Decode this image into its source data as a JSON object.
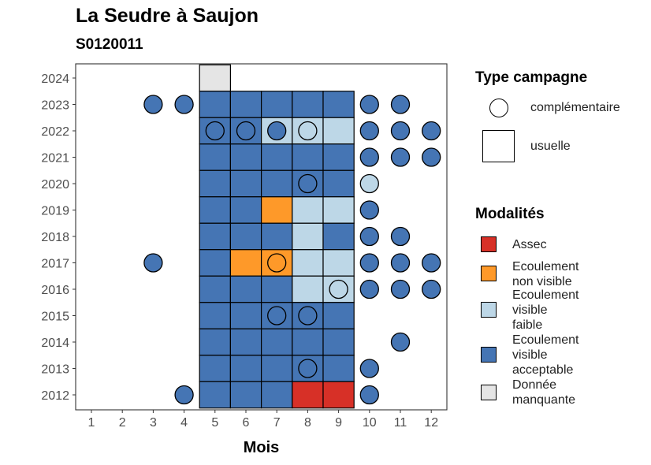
{
  "chart_data": {
    "type": "heatmap",
    "title": "La Seudre à Saujon",
    "subtitle": "S0120011",
    "xlabel": "Mois",
    "ylabel": "",
    "x_ticks": [
      "1",
      "2",
      "3",
      "4",
      "5",
      "6",
      "7",
      "8",
      "9",
      "10",
      "11",
      "12"
    ],
    "y_ticks": [
      "2012",
      "2013",
      "2014",
      "2015",
      "2016",
      "2017",
      "2018",
      "2019",
      "2020",
      "2021",
      "2022",
      "2023",
      "2024"
    ],
    "grid": false,
    "legend_position": "right",
    "colors": {
      "Assec": "#D73027",
      "Ecoulement non visible": "#FE9929",
      "Ecoulement visible faible": "#BDD7E7",
      "Ecoulement visible acceptable": "#4575B4",
      "Donnée manquante": "#E5E5E5"
    },
    "usuelle": [
      {
        "year": 2024,
        "month": 5,
        "modalite": "Donnée manquante"
      },
      {
        "year": 2023,
        "month": 5,
        "modalite": "Ecoulement visible acceptable"
      },
      {
        "year": 2023,
        "month": 6,
        "modalite": "Ecoulement visible acceptable"
      },
      {
        "year": 2023,
        "month": 7,
        "modalite": "Ecoulement visible acceptable"
      },
      {
        "year": 2023,
        "month": 8,
        "modalite": "Ecoulement visible acceptable"
      },
      {
        "year": 2023,
        "month": 9,
        "modalite": "Ecoulement visible acceptable"
      },
      {
        "year": 2022,
        "month": 5,
        "modalite": "Ecoulement visible acceptable"
      },
      {
        "year": 2022,
        "month": 6,
        "modalite": "Ecoulement visible acceptable"
      },
      {
        "year": 2022,
        "month": 7,
        "modalite": "Ecoulement visible faible"
      },
      {
        "year": 2022,
        "month": 8,
        "modalite": "Ecoulement visible faible"
      },
      {
        "year": 2022,
        "month": 9,
        "modalite": "Ecoulement visible faible"
      },
      {
        "year": 2021,
        "month": 5,
        "modalite": "Ecoulement visible acceptable"
      },
      {
        "year": 2021,
        "month": 6,
        "modalite": "Ecoulement visible acceptable"
      },
      {
        "year": 2021,
        "month": 7,
        "modalite": "Ecoulement visible acceptable"
      },
      {
        "year": 2021,
        "month": 8,
        "modalite": "Ecoulement visible acceptable"
      },
      {
        "year": 2021,
        "month": 9,
        "modalite": "Ecoulement visible acceptable"
      },
      {
        "year": 2020,
        "month": 5,
        "modalite": "Ecoulement visible acceptable"
      },
      {
        "year": 2020,
        "month": 6,
        "modalite": "Ecoulement visible acceptable"
      },
      {
        "year": 2020,
        "month": 7,
        "modalite": "Ecoulement visible acceptable"
      },
      {
        "year": 2020,
        "month": 8,
        "modalite": "Ecoulement visible acceptable"
      },
      {
        "year": 2020,
        "month": 9,
        "modalite": "Ecoulement visible acceptable"
      },
      {
        "year": 2019,
        "month": 5,
        "modalite": "Ecoulement visible acceptable"
      },
      {
        "year": 2019,
        "month": 6,
        "modalite": "Ecoulement visible acceptable"
      },
      {
        "year": 2019,
        "month": 7,
        "modalite": "Ecoulement non visible"
      },
      {
        "year": 2019,
        "month": 8,
        "modalite": "Ecoulement visible faible"
      },
      {
        "year": 2019,
        "month": 9,
        "modalite": "Ecoulement visible faible"
      },
      {
        "year": 2018,
        "month": 5,
        "modalite": "Ecoulement visible acceptable"
      },
      {
        "year": 2018,
        "month": 6,
        "modalite": "Ecoulement visible acceptable"
      },
      {
        "year": 2018,
        "month": 7,
        "modalite": "Ecoulement visible acceptable"
      },
      {
        "year": 2018,
        "month": 8,
        "modalite": "Ecoulement visible faible"
      },
      {
        "year": 2018,
        "month": 9,
        "modalite": "Ecoulement visible acceptable"
      },
      {
        "year": 2017,
        "month": 5,
        "modalite": "Ecoulement visible acceptable"
      },
      {
        "year": 2017,
        "month": 6,
        "modalite": "Ecoulement non visible"
      },
      {
        "year": 2017,
        "month": 7,
        "modalite": "Ecoulement non visible"
      },
      {
        "year": 2017,
        "month": 8,
        "modalite": "Ecoulement visible faible"
      },
      {
        "year": 2017,
        "month": 9,
        "modalite": "Ecoulement visible faible"
      },
      {
        "year": 2016,
        "month": 5,
        "modalite": "Ecoulement visible acceptable"
      },
      {
        "year": 2016,
        "month": 6,
        "modalite": "Ecoulement visible acceptable"
      },
      {
        "year": 2016,
        "month": 7,
        "modalite": "Ecoulement visible acceptable"
      },
      {
        "year": 2016,
        "month": 8,
        "modalite": "Ecoulement visible faible"
      },
      {
        "year": 2016,
        "month": 9,
        "modalite": "Ecoulement visible faible"
      },
      {
        "year": 2015,
        "month": 5,
        "modalite": "Ecoulement visible acceptable"
      },
      {
        "year": 2015,
        "month": 6,
        "modalite": "Ecoulement visible acceptable"
      },
      {
        "year": 2015,
        "month": 7,
        "modalite": "Ecoulement visible acceptable"
      },
      {
        "year": 2015,
        "month": 8,
        "modalite": "Ecoulement visible acceptable"
      },
      {
        "year": 2015,
        "month": 9,
        "modalite": "Ecoulement visible acceptable"
      },
      {
        "year": 2014,
        "month": 5,
        "modalite": "Ecoulement visible acceptable"
      },
      {
        "year": 2014,
        "month": 6,
        "modalite": "Ecoulement visible acceptable"
      },
      {
        "year": 2014,
        "month": 7,
        "modalite": "Ecoulement visible acceptable"
      },
      {
        "year": 2014,
        "month": 8,
        "modalite": "Ecoulement visible acceptable"
      },
      {
        "year": 2014,
        "month": 9,
        "modalite": "Ecoulement visible acceptable"
      },
      {
        "year": 2013,
        "month": 5,
        "modalite": "Ecoulement visible acceptable"
      },
      {
        "year": 2013,
        "month": 6,
        "modalite": "Ecoulement visible acceptable"
      },
      {
        "year": 2013,
        "month": 7,
        "modalite": "Ecoulement visible acceptable"
      },
      {
        "year": 2013,
        "month": 8,
        "modalite": "Ecoulement visible acceptable"
      },
      {
        "year": 2013,
        "month": 9,
        "modalite": "Ecoulement visible acceptable"
      },
      {
        "year": 2012,
        "month": 5,
        "modalite": "Ecoulement visible acceptable"
      },
      {
        "year": 2012,
        "month": 6,
        "modalite": "Ecoulement visible acceptable"
      },
      {
        "year": 2012,
        "month": 7,
        "modalite": "Ecoulement visible acceptable"
      },
      {
        "year": 2012,
        "month": 8,
        "modalite": "Assec"
      },
      {
        "year": 2012,
        "month": 9,
        "modalite": "Assec"
      }
    ],
    "complementaire": [
      {
        "year": 2023,
        "month": 3,
        "modalite": "Ecoulement visible acceptable"
      },
      {
        "year": 2023,
        "month": 4,
        "modalite": "Ecoulement visible acceptable"
      },
      {
        "year": 2023,
        "month": 10,
        "modalite": "Ecoulement visible acceptable"
      },
      {
        "year": 2023,
        "month": 11,
        "modalite": "Ecoulement visible acceptable"
      },
      {
        "year": 2022,
        "month": 5,
        "modalite": "Ecoulement visible acceptable"
      },
      {
        "year": 2022,
        "month": 6,
        "modalite": "Ecoulement visible acceptable"
      },
      {
        "year": 2022,
        "month": 7,
        "modalite": "Ecoulement visible acceptable"
      },
      {
        "year": 2022,
        "month": 8,
        "modalite": "Ecoulement visible faible"
      },
      {
        "year": 2022,
        "month": 10,
        "modalite": "Ecoulement visible acceptable"
      },
      {
        "year": 2022,
        "month": 11,
        "modalite": "Ecoulement visible acceptable"
      },
      {
        "year": 2022,
        "month": 12,
        "modalite": "Ecoulement visible acceptable"
      },
      {
        "year": 2021,
        "month": 10,
        "modalite": "Ecoulement visible acceptable"
      },
      {
        "year": 2021,
        "month": 11,
        "modalite": "Ecoulement visible acceptable"
      },
      {
        "year": 2021,
        "month": 12,
        "modalite": "Ecoulement visible acceptable"
      },
      {
        "year": 2020,
        "month": 8,
        "modalite": "Ecoulement visible acceptable"
      },
      {
        "year": 2020,
        "month": 10,
        "modalite": "Ecoulement visible faible"
      },
      {
        "year": 2019,
        "month": 10,
        "modalite": "Ecoulement visible acceptable"
      },
      {
        "year": 2018,
        "month": 10,
        "modalite": "Ecoulement visible acceptable"
      },
      {
        "year": 2018,
        "month": 11,
        "modalite": "Ecoulement visible acceptable"
      },
      {
        "year": 2017,
        "month": 3,
        "modalite": "Ecoulement visible acceptable"
      },
      {
        "year": 2017,
        "month": 7,
        "modalite": "Ecoulement non visible"
      },
      {
        "year": 2017,
        "month": 10,
        "modalite": "Ecoulement visible acceptable"
      },
      {
        "year": 2017,
        "month": 11,
        "modalite": "Ecoulement visible acceptable"
      },
      {
        "year": 2017,
        "month": 12,
        "modalite": "Ecoulement visible acceptable"
      },
      {
        "year": 2016,
        "month": 9,
        "modalite": "Ecoulement visible faible"
      },
      {
        "year": 2016,
        "month": 10,
        "modalite": "Ecoulement visible acceptable"
      },
      {
        "year": 2016,
        "month": 11,
        "modalite": "Ecoulement visible acceptable"
      },
      {
        "year": 2016,
        "month": 12,
        "modalite": "Ecoulement visible acceptable"
      },
      {
        "year": 2015,
        "month": 7,
        "modalite": "Ecoulement visible acceptable"
      },
      {
        "year": 2015,
        "month": 8,
        "modalite": "Ecoulement visible acceptable"
      },
      {
        "year": 2014,
        "month": 11,
        "modalite": "Ecoulement visible acceptable"
      },
      {
        "year": 2013,
        "month": 8,
        "modalite": "Ecoulement visible acceptable"
      },
      {
        "year": 2013,
        "month": 10,
        "modalite": "Ecoulement visible acceptable"
      },
      {
        "year": 2012,
        "month": 4,
        "modalite": "Ecoulement visible acceptable"
      },
      {
        "year": 2012,
        "month": 10,
        "modalite": "Ecoulement visible acceptable"
      }
    ]
  },
  "legend": {
    "type_title": "Type campagne",
    "type_items": [
      "complémentaire",
      "usuelle"
    ],
    "mod_title": "Modalités",
    "mod_items": [
      {
        "label_lines": [
          "Assec"
        ],
        "color": "#D73027"
      },
      {
        "label_lines": [
          "Ecoulement",
          "non visible"
        ],
        "color": "#FE9929"
      },
      {
        "label_lines": [
          "Ecoulement",
          "visible",
          "faible"
        ],
        "color": "#BDD7E7"
      },
      {
        "label_lines": [
          "Ecoulement",
          "visible",
          "acceptable"
        ],
        "color": "#4575B4"
      },
      {
        "label_lines": [
          "Donnée",
          "manquante"
        ],
        "color": "#E5E5E5"
      }
    ]
  }
}
